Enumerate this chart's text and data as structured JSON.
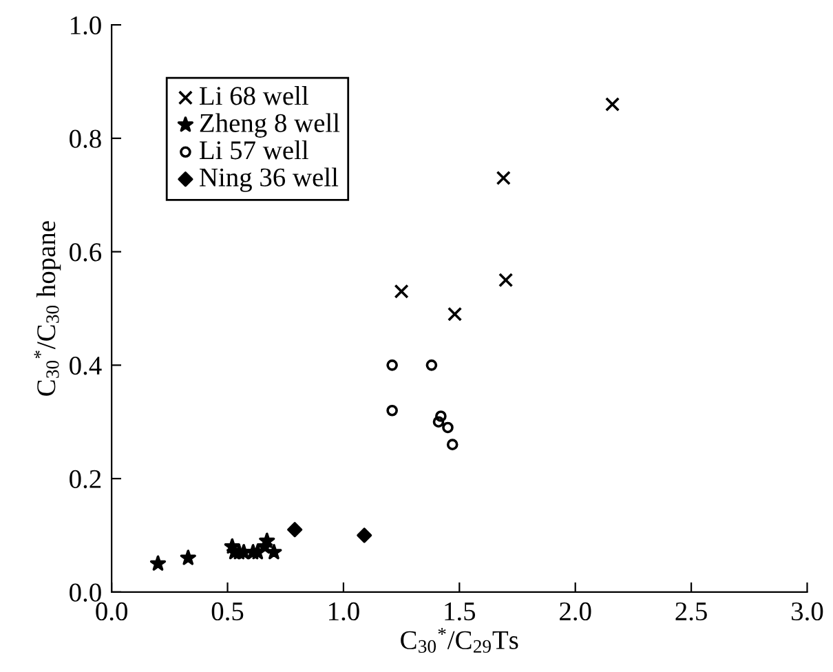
{
  "chart_data": {
    "type": "scatter",
    "xlabel": "C$_{30}$$^{*}$/C$_{29}$Ts",
    "ylabel": "C$_{30}$$^{*}$/C$_{30}$ hopane",
    "xlim": [
      0,
      3.0
    ],
    "ylim": [
      0,
      1.0
    ],
    "xticks": [
      {
        "value": 0,
        "label": "0.0"
      },
      0.5,
      {
        "value": 1,
        "label": "1.0"
      },
      1.5,
      {
        "value": 2,
        "label": "2.0"
      },
      2.5,
      {
        "value": 3,
        "label": "3.0"
      }
    ],
    "yticks": [
      {
        "value": 0,
        "label": "0.0"
      },
      0.2,
      0.4,
      0.6,
      0.8,
      {
        "value": 1,
        "label": "1.0"
      }
    ],
    "grid": false,
    "legend": "top left",
    "series": [
      {
        "name": "Li 68 well",
        "color": "#000000",
        "marker": "cross",
        "x": [
          1.25,
          1.48,
          1.69,
          1.7,
          2.16
        ],
        "values": [
          0.53,
          0.49,
          0.73,
          0.55,
          0.86
        ]
      },
      {
        "name": "Zheng 8 well",
        "color": "#000000",
        "marker": "star",
        "x": [
          0.2,
          0.33,
          0.52,
          0.53,
          0.55,
          0.57,
          0.61,
          0.63,
          0.66,
          0.67,
          0.7
        ],
        "values": [
          0.05,
          0.06,
          0.08,
          0.07,
          0.07,
          0.07,
          0.07,
          0.07,
          0.08,
          0.09,
          0.07
        ]
      },
      {
        "name": "Li 57 well",
        "color": "#000000",
        "marker": "circle",
        "x": [
          1.21,
          1.21,
          1.38,
          1.41,
          1.42,
          1.45,
          1.47
        ],
        "values": [
          0.4,
          0.32,
          0.4,
          0.3,
          0.31,
          0.29,
          0.26
        ]
      },
      {
        "name": "Ning 36 well",
        "color": "#000000",
        "marker": "diamond",
        "x": [
          0.79,
          1.09
        ],
        "values": [
          0.11,
          0.1
        ]
      }
    ]
  }
}
